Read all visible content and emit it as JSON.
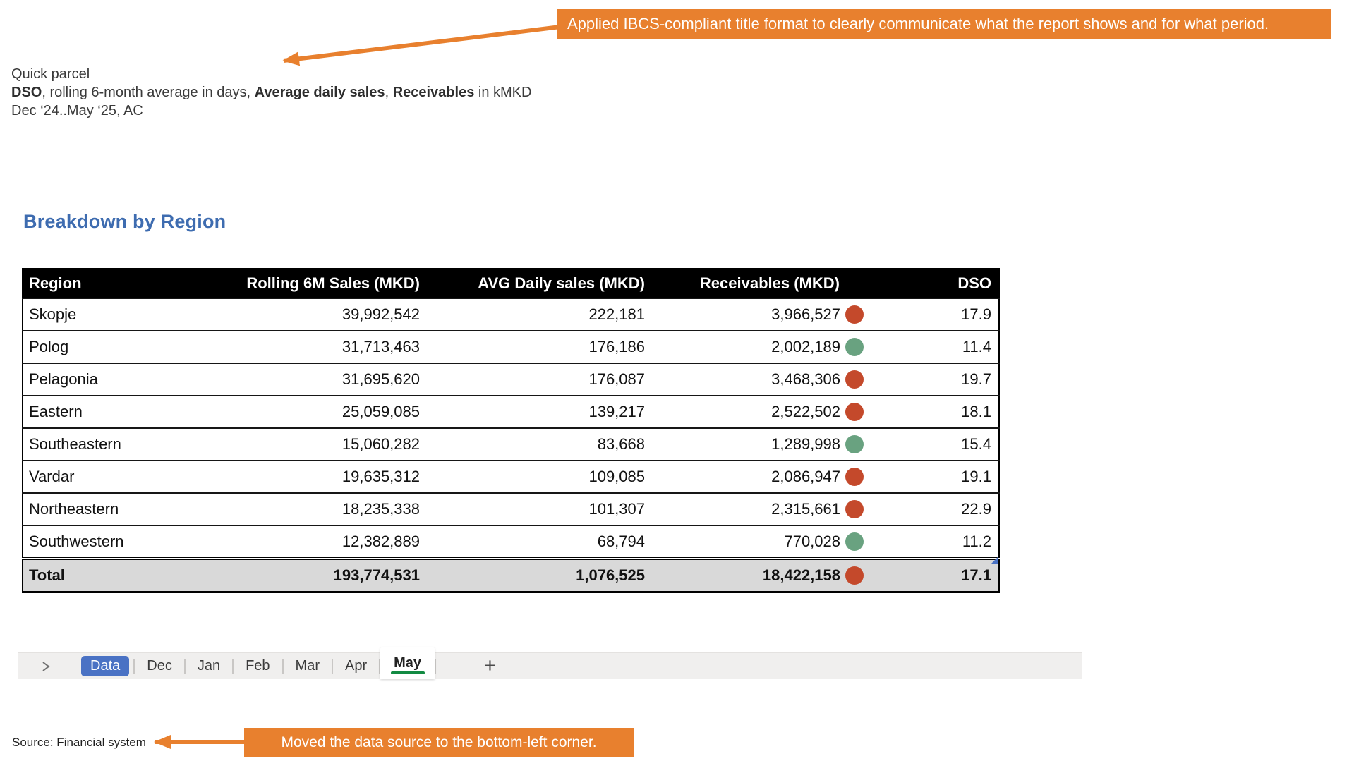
{
  "annotations": {
    "title_note": "Applied IBCS-compliant title format to clearly communicate what the report shows and for what period.",
    "source_note": "Moved the data source to the bottom-left corner."
  },
  "report_title": {
    "line1": "Quick parcel",
    "line2_segments": [
      {
        "text": "DSO",
        "bold": true
      },
      {
        "text": ", rolling 6-month average in days, ",
        "bold": false
      },
      {
        "text": "Average daily sales",
        "bold": true
      },
      {
        "text": ", ",
        "bold": false
      },
      {
        "text": "Receivables",
        "bold": true
      },
      {
        "text": " in kMKD",
        "bold": false
      }
    ],
    "line3": "Dec ‘24..May ‘25, AC"
  },
  "section_heading": "Breakdown by Region",
  "table": {
    "columns": [
      "Region",
      "Rolling 6M Sales (MKD)",
      "AVG Daily sales (MKD)",
      "Receivables (MKD)",
      "DSO"
    ],
    "rows": [
      {
        "region": "Skopje",
        "rolling_6m_sales": "39,992,542",
        "avg_daily_sales": "222,181",
        "receivables": "3,966,527",
        "indicator": "red",
        "dso": "17.9"
      },
      {
        "region": "Polog",
        "rolling_6m_sales": "31,713,463",
        "avg_daily_sales": "176,186",
        "receivables": "2,002,189",
        "indicator": "green",
        "dso": "11.4"
      },
      {
        "region": "Pelagonia",
        "rolling_6m_sales": "31,695,620",
        "avg_daily_sales": "176,087",
        "receivables": "3,468,306",
        "indicator": "red",
        "dso": "19.7"
      },
      {
        "region": "Eastern",
        "rolling_6m_sales": "25,059,085",
        "avg_daily_sales": "139,217",
        "receivables": "2,522,502",
        "indicator": "red",
        "dso": "18.1"
      },
      {
        "region": "Southeastern",
        "rolling_6m_sales": "15,060,282",
        "avg_daily_sales": "83,668",
        "receivables": "1,289,998",
        "indicator": "green",
        "dso": "15.4"
      },
      {
        "region": "Vardar",
        "rolling_6m_sales": "19,635,312",
        "avg_daily_sales": "109,085",
        "receivables": "2,086,947",
        "indicator": "red",
        "dso": "19.1"
      },
      {
        "region": "Northeastern",
        "rolling_6m_sales": "18,235,338",
        "avg_daily_sales": "101,307",
        "receivables": "2,315,661",
        "indicator": "red",
        "dso": "22.9"
      },
      {
        "region": "Southwestern",
        "rolling_6m_sales": "12,382,889",
        "avg_daily_sales": "68,794",
        "receivables": "770,028",
        "indicator": "green",
        "dso": "11.2"
      }
    ],
    "total": {
      "region": "Total",
      "rolling_6m_sales": "193,774,531",
      "avg_daily_sales": "1,076,525",
      "receivables": "18,422,158",
      "indicator": "red",
      "dso": "17.1"
    },
    "indicator_colors": {
      "red": "#C4492B",
      "green": "#69A280"
    }
  },
  "sheet_tabs": {
    "nav_icon": "chevron-right",
    "tabs": [
      {
        "label": "Data",
        "state": "selected-pill"
      },
      {
        "label": "Dec",
        "state": "normal"
      },
      {
        "label": "Jan",
        "state": "normal"
      },
      {
        "label": "Feb",
        "state": "normal"
      },
      {
        "label": "Mar",
        "state": "normal"
      },
      {
        "label": "Apr",
        "state": "normal"
      },
      {
        "label": "May",
        "state": "active"
      }
    ],
    "add_label": "+"
  },
  "source": "Source: Financial system",
  "colors": {
    "annotation_orange": "#E8802E",
    "selected_tab_blue": "#4A72C4",
    "active_tab_underline_green": "#128A42",
    "heading_blue": "#3E6CB0",
    "total_row_gray": "#D9D9D9",
    "header_black": "#000000"
  }
}
